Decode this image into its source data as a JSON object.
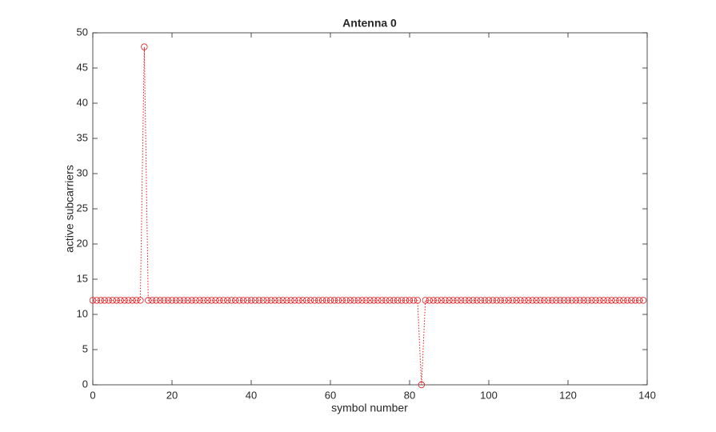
{
  "chart_data": {
    "type": "line",
    "title": "Antenna 0",
    "x_label": "symbol number",
    "y_label": "active subcarriers",
    "x": [
      0,
      1,
      2,
      3,
      4,
      5,
      6,
      7,
      8,
      9,
      10,
      11,
      12,
      13,
      14,
      15,
      16,
      17,
      18,
      19,
      20,
      21,
      22,
      23,
      24,
      25,
      26,
      27,
      28,
      29,
      30,
      31,
      32,
      33,
      34,
      35,
      36,
      37,
      38,
      39,
      40,
      41,
      42,
      43,
      44,
      45,
      46,
      47,
      48,
      49,
      50,
      51,
      52,
      53,
      54,
      55,
      56,
      57,
      58,
      59,
      60,
      61,
      62,
      63,
      64,
      65,
      66,
      67,
      68,
      69,
      70,
      71,
      72,
      73,
      74,
      75,
      76,
      77,
      78,
      79,
      80,
      81,
      82,
      83,
      84,
      85,
      86,
      87,
      88,
      89,
      90,
      91,
      92,
      93,
      94,
      95,
      96,
      97,
      98,
      99,
      100,
      101,
      102,
      103,
      104,
      105,
      106,
      107,
      108,
      109,
      110,
      111,
      112,
      113,
      114,
      115,
      116,
      117,
      118,
      119,
      120,
      121,
      122,
      123,
      124,
      125,
      126,
      127,
      128,
      129,
      130,
      131,
      132,
      133,
      134,
      135,
      136,
      137,
      138,
      139
    ],
    "series": [
      {
        "color": "#e8191c",
        "values": [
          12,
          12,
          12,
          12,
          12,
          12,
          12,
          12,
          12,
          12,
          12,
          12,
          12,
          48,
          12,
          12,
          12,
          12,
          12,
          12,
          12,
          12,
          12,
          12,
          12,
          12,
          12,
          12,
          12,
          12,
          12,
          12,
          12,
          12,
          12,
          12,
          12,
          12,
          12,
          12,
          12,
          12,
          12,
          12,
          12,
          12,
          12,
          12,
          12,
          12,
          12,
          12,
          12,
          12,
          12,
          12,
          12,
          12,
          12,
          12,
          12,
          12,
          12,
          12,
          12,
          12,
          12,
          12,
          12,
          12,
          12,
          12,
          12,
          12,
          12,
          12,
          12,
          12,
          12,
          12,
          12,
          12,
          12,
          0,
          12,
          12,
          12,
          12,
          12,
          12,
          12,
          12,
          12,
          12,
          12,
          12,
          12,
          12,
          12,
          12,
          12,
          12,
          12,
          12,
          12,
          12,
          12,
          12,
          12,
          12,
          12,
          12,
          12,
          12,
          12,
          12,
          12,
          12,
          12,
          12,
          12,
          12,
          12,
          12,
          12,
          12,
          12,
          12,
          12,
          12,
          12,
          12,
          12,
          12,
          12,
          12,
          12,
          12,
          12,
          12
        ]
      }
    ],
    "xlim": [
      0,
      140
    ],
    "xticks": [
      0,
      20,
      40,
      60,
      80,
      100,
      120,
      140
    ],
    "ylim": [
      0,
      50
    ],
    "yticks": [
      0,
      5,
      10,
      15,
      20,
      25,
      30,
      35,
      40,
      45,
      50
    ],
    "grid": false
  }
}
